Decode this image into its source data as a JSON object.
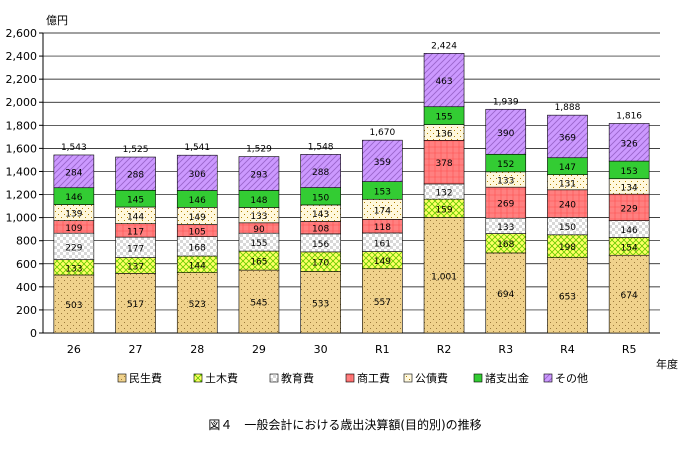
{
  "chart_data": {
    "type": "bar",
    "stacked": true,
    "y_unit_label": "億円",
    "x_unit_label": "年度",
    "ylim": [
      0,
      2600
    ],
    "y_ticks": [
      0,
      200,
      400,
      600,
      800,
      1000,
      1200,
      1400,
      1600,
      1800,
      2000,
      2200,
      2400,
      2600
    ],
    "y_tick_labels": [
      "0",
      "200",
      "400",
      "600",
      "800",
      "1,000",
      "1,200",
      "1,400",
      "1,600",
      "1,800",
      "2,000",
      "2,200",
      "2,400",
      "2,600"
    ],
    "categories": [
      "26",
      "27",
      "28",
      "29",
      "30",
      "R1",
      "R2",
      "R3",
      "R4",
      "R5"
    ],
    "series": [
      {
        "name": "民生費",
        "values": [
          503,
          517,
          523,
          545,
          533,
          557,
          1001,
          694,
          653,
          674
        ],
        "labels": [
          "503",
          "517",
          "523",
          "545",
          "533",
          "557",
          "1,001",
          "694",
          "653",
          "674"
        ]
      },
      {
        "name": "土木費",
        "values": [
          133,
          137,
          144,
          165,
          170,
          149,
          159,
          168,
          198,
          154
        ],
        "labels": [
          "133",
          "137",
          "144",
          "165",
          "170",
          "149",
          "159",
          "168",
          "198",
          "154"
        ]
      },
      {
        "name": "教育費",
        "values": [
          229,
          177,
          168,
          155,
          156,
          161,
          132,
          133,
          150,
          146
        ],
        "labels": [
          "229",
          "177",
          "168",
          "155",
          "156",
          "161",
          "132",
          "133",
          "150",
          "146"
        ]
      },
      {
        "name": "商工費",
        "values": [
          109,
          117,
          105,
          90,
          108,
          118,
          378,
          269,
          240,
          229
        ],
        "labels": [
          "109",
          "117",
          "105",
          "90",
          "108",
          "118",
          "378",
          "269",
          "240",
          "229"
        ]
      },
      {
        "name": "公債費",
        "values": [
          139,
          144,
          149,
          133,
          143,
          174,
          136,
          133,
          131,
          134
        ],
        "labels": [
          "139",
          "144",
          "149",
          "133",
          "143",
          "174",
          "136",
          "133",
          "131",
          "134"
        ]
      },
      {
        "name": "諸支出金",
        "values": [
          146,
          145,
          146,
          148,
          150,
          153,
          155,
          152,
          147,
          153
        ],
        "labels": [
          "146",
          "145",
          "146",
          "148",
          "150",
          "153",
          "155",
          "152",
          "147",
          "153"
        ]
      },
      {
        "name": "その他",
        "values": [
          284,
          288,
          306,
          293,
          288,
          359,
          463,
          390,
          369,
          326
        ],
        "labels": [
          "284",
          "288",
          "306",
          "293",
          "288",
          "359",
          "463",
          "390",
          "369",
          "326"
        ]
      }
    ],
    "totals": [
      1543,
      1525,
      1541,
      1529,
      1548,
      1670,
      2424,
      1939,
      1888,
      1816
    ],
    "total_labels": [
      "1,543",
      "1,525",
      "1,541",
      "1,529",
      "1,548",
      "1,670",
      "2,424",
      "1,939",
      "1,888",
      "1,816"
    ],
    "grid": true,
    "legend_position": "bottom"
  },
  "colors": {
    "series": [
      "#F0D28C",
      "#FFFF66",
      "#FFFFFF",
      "#FF8080",
      "#FFF8DC",
      "#33CC33",
      "#CC99FF"
    ],
    "pattern_dots": [
      "#9C7A3C",
      "#66CC00",
      "#888888",
      "#FF5050",
      "#B08000",
      "#007700",
      "#9966CC"
    ],
    "grid": "#000000"
  },
  "caption": "図４　一般会計における歳出決算額(目的別)の推移"
}
